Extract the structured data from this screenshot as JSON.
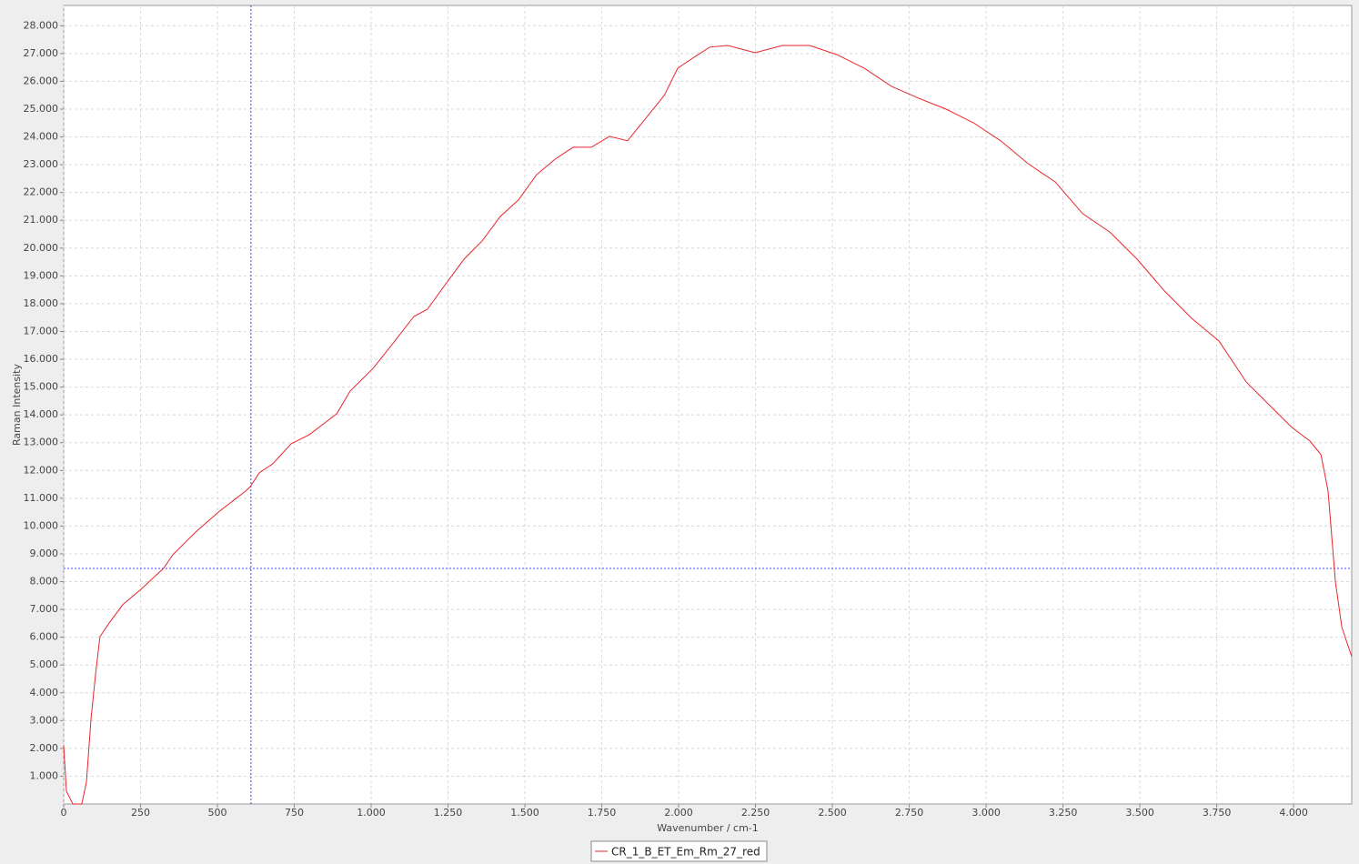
{
  "chart_data": {
    "type": "line",
    "x_label": "Wavenumber / cm-1",
    "y_label": "Raman Intensity",
    "x": [
      0,
      9,
      30,
      59,
      74,
      89,
      104,
      118,
      148,
      192,
      251,
      325,
      355,
      429,
      503,
      592,
      607,
      636,
      680,
      740,
      799,
      888,
      932,
      1006,
      1065,
      1139,
      1183,
      1243,
      1302,
      1361,
      1420,
      1479,
      1538,
      1598,
      1657,
      1716,
      1775,
      1834,
      1893,
      1953,
      1997,
      2041,
      2101,
      2160,
      2249,
      2337,
      2426,
      2515,
      2604,
      2692,
      2781,
      2870,
      2959,
      3047,
      3136,
      3225,
      3314,
      3402,
      3491,
      3580,
      3669,
      3757,
      3846,
      3935,
      3994,
      4053,
      4089,
      4112,
      4136,
      4157,
      4189
    ],
    "series": [
      {
        "name": "CR_1_B_ET_Em_Rm_27_red",
        "color": "#e8262c",
        "values": [
          2100,
          460,
          0,
          0,
          785,
          3080,
          4710,
          6020,
          6510,
          7170,
          7720,
          8480,
          8970,
          9780,
          10500,
          11260,
          11420,
          11910,
          12240,
          12960,
          13290,
          14040,
          14860,
          15670,
          16490,
          17540,
          17800,
          18720,
          19600,
          20260,
          21140,
          21730,
          22640,
          23200,
          23630,
          23630,
          24020,
          23860,
          24670,
          25490,
          26470,
          26800,
          27230,
          27290,
          27030,
          27290,
          27290,
          26960,
          26470,
          25820,
          25390,
          25000,
          24510,
          23860,
          23040,
          22380,
          21240,
          20580,
          19600,
          18460,
          17470,
          16660,
          15180,
          14200,
          13550,
          13060,
          12570,
          11260,
          7980,
          6350,
          5300
        ]
      }
    ],
    "xlim": [
      0,
      4189
    ],
    "ylim": [
      0,
      28730
    ],
    "xticks": [
      0,
      250,
      500,
      750,
      {
        "value": 1000,
        "label": "1.000"
      },
      {
        "value": 1250,
        "label": "1.250"
      },
      {
        "value": 1500,
        "label": "1.500"
      },
      {
        "value": 1750,
        "label": "1.750"
      },
      {
        "value": 2000,
        "label": "2.000"
      },
      {
        "value": 2250,
        "label": "2.250"
      },
      {
        "value": 2500,
        "label": "2.500"
      },
      {
        "value": 2750,
        "label": "2.750"
      },
      {
        "value": 3000,
        "label": "3.000"
      },
      {
        "value": 3250,
        "label": "3.250"
      },
      {
        "value": 3500,
        "label": "3.500"
      },
      {
        "value": 3750,
        "label": "3.750"
      },
      {
        "value": 4000,
        "label": "4.000"
      }
    ],
    "yticks": [
      {
        "value": 1000,
        "label": "1.000"
      },
      {
        "value": 2000,
        "label": "2.000"
      },
      {
        "value": 3000,
        "label": "3.000"
      },
      {
        "value": 4000,
        "label": "4.000"
      },
      {
        "value": 5000,
        "label": "5.000"
      },
      {
        "value": 6000,
        "label": "6.000"
      },
      {
        "value": 7000,
        "label": "7.000"
      },
      {
        "value": 8000,
        "label": "8.000"
      },
      {
        "value": 9000,
        "label": "9.000"
      },
      {
        "value": 10000,
        "label": "10.000"
      },
      {
        "value": 11000,
        "label": "11.000"
      },
      {
        "value": 12000,
        "label": "12.000"
      },
      {
        "value": 13000,
        "label": "13.000"
      },
      {
        "value": 14000,
        "label": "14.000"
      },
      {
        "value": 15000,
        "label": "15.000"
      },
      {
        "value": 16000,
        "label": "16.000"
      },
      {
        "value": 17000,
        "label": "17.000"
      },
      {
        "value": 18000,
        "label": "18.000"
      },
      {
        "value": 19000,
        "label": "19.000"
      },
      {
        "value": 20000,
        "label": "20.000"
      },
      {
        "value": 21000,
        "label": "21.000"
      },
      {
        "value": 22000,
        "label": "22.000"
      },
      {
        "value": 23000,
        "label": "23.000"
      },
      {
        "value": 24000,
        "label": "24.000"
      },
      {
        "value": 25000,
        "label": "25.000"
      },
      {
        "value": 26000,
        "label": "26.000"
      },
      {
        "value": 27000,
        "label": "27.000"
      },
      {
        "value": 28000,
        "label": "28.000"
      }
    ],
    "grid": true,
    "crosshair": {
      "x": 609,
      "y": 8475,
      "color": "#4040ff"
    },
    "legend": "bottom"
  }
}
